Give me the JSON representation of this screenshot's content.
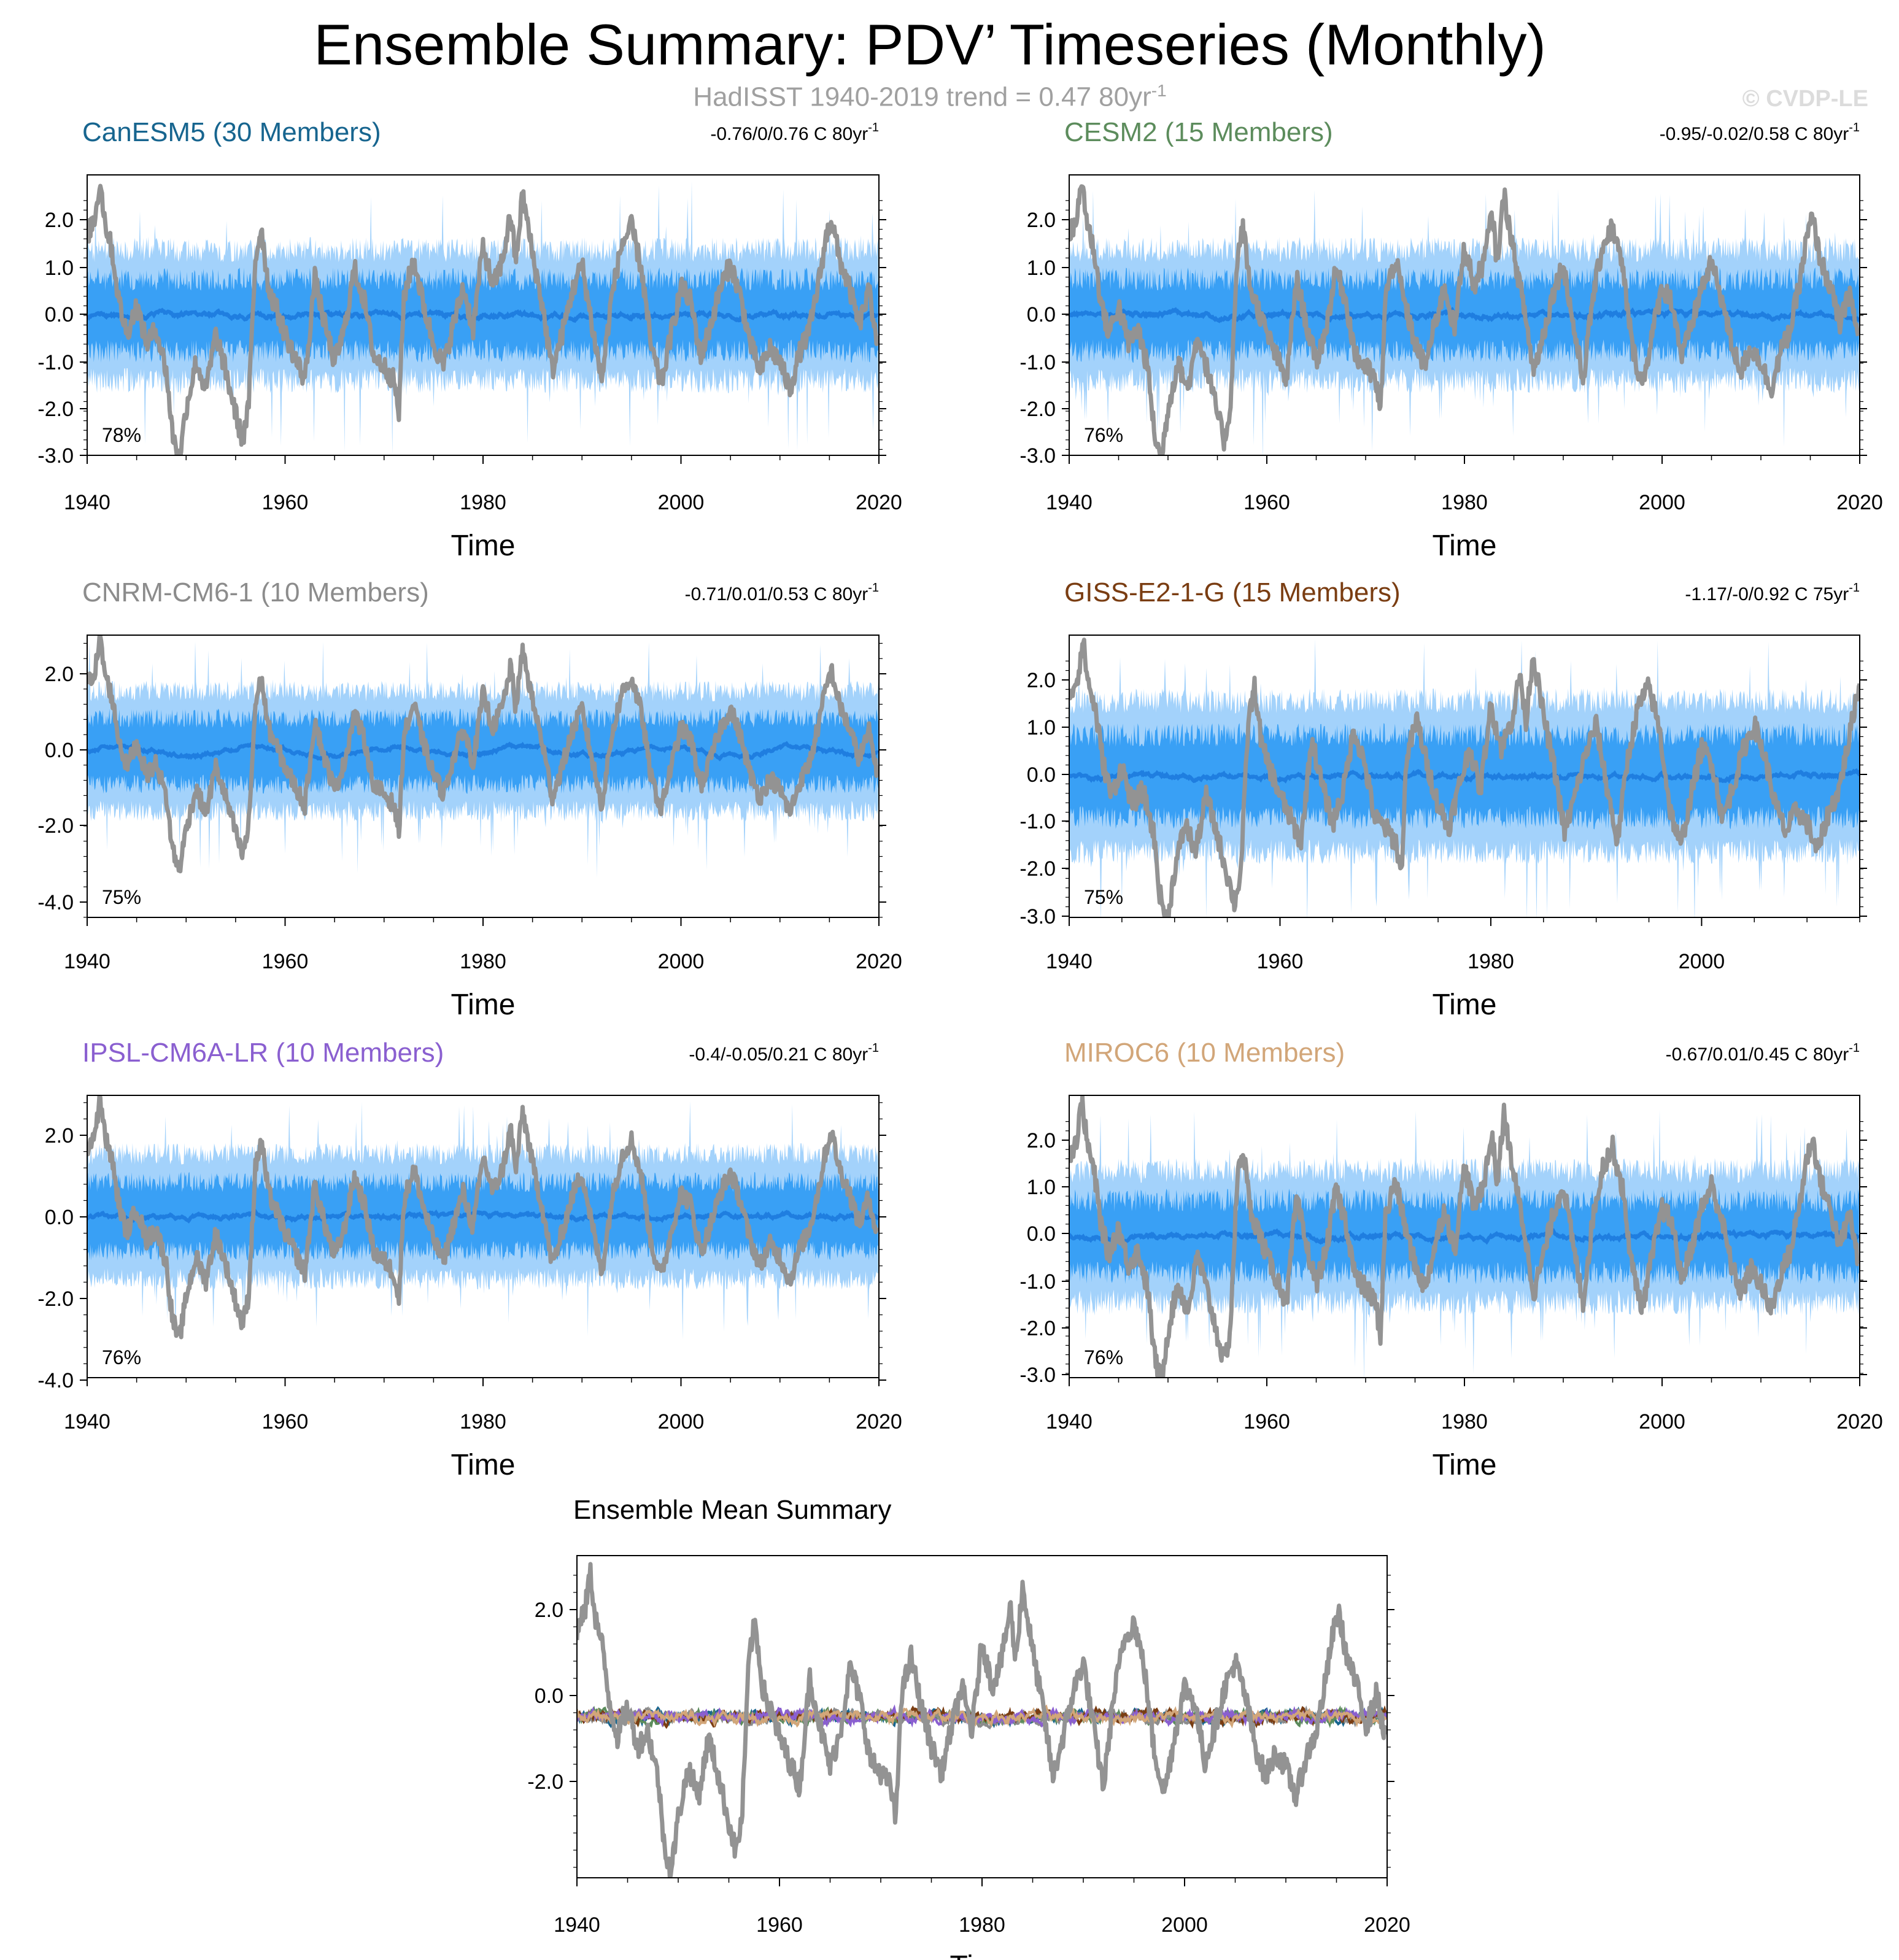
{
  "title": "Ensemble Summary: PDV’ Timeseries (Monthly)",
  "subtitle": "HadISST 1940-2019 trend = 0.47 80yr",
  "subtitle_sup": "-1",
  "copyright": "© CVDP-LE",
  "chart_data": [
    {
      "type": "area",
      "id": "canesm5",
      "title": "CanESM5 (30 Members)",
      "title_color": "#17658f",
      "trend": "-0.76/0/0.76 C 80yr",
      "trend_sup": "-1",
      "percent": "78%",
      "xlabel": "Time",
      "x_ticks": [
        "1940",
        "1960",
        "1980",
        "2000",
        "2020"
      ],
      "xlim": [
        1940,
        2020
      ],
      "y_ticks": [
        "2.0",
        "1.0",
        "0.0",
        "-1.0",
        "-2.0",
        "-3.0"
      ],
      "ylim": [
        -3.0,
        3.0
      ],
      "series": [
        {
          "name": "ensemble 10-90% range",
          "color": "#a3d2fb"
        },
        {
          "name": "ensemble 25-75% range",
          "color": "#39a0f5"
        },
        {
          "name": "ensemble mean",
          "color": "#1f7ee0"
        },
        {
          "name": "HadISST observed",
          "color": "#939393"
        }
      ]
    },
    {
      "type": "area",
      "id": "cesm2",
      "title": "CESM2 (15 Members)",
      "title_color": "#5c8c5c",
      "trend": "-0.95/-0.02/0.58 C 80yr",
      "trend_sup": "-1",
      "percent": "76%",
      "xlabel": "Time",
      "x_ticks": [
        "1940",
        "1960",
        "1980",
        "2000",
        "2020"
      ],
      "xlim": [
        1940,
        2020
      ],
      "y_ticks": [
        "2.0",
        "1.0",
        "0.0",
        "-1.0",
        "-2.0",
        "-3.0"
      ],
      "ylim": [
        -3.0,
        3.0
      ],
      "series": [
        {
          "name": "ensemble 10-90% range",
          "color": "#a3d2fb"
        },
        {
          "name": "ensemble 25-75% range",
          "color": "#39a0f5"
        },
        {
          "name": "ensemble mean",
          "color": "#1f7ee0"
        },
        {
          "name": "HadISST observed",
          "color": "#939393"
        }
      ]
    },
    {
      "type": "area",
      "id": "cnrm",
      "title": "CNRM-CM6-1 (10 Members)",
      "title_color": "#8c8c8c",
      "trend": "-0.71/0.01/0.53 C 80yr",
      "trend_sup": "-1",
      "percent": "75%",
      "xlabel": "Time",
      "x_ticks": [
        "1940",
        "1960",
        "1980",
        "2000",
        "2020"
      ],
      "xlim": [
        1940,
        2020
      ],
      "y_ticks": [
        "2.0",
        "0.0",
        "-2.0",
        "-4.0"
      ],
      "ylim": [
        -4.3,
        3.0
      ],
      "series": [
        {
          "name": "ensemble 10-90% range",
          "color": "#a3d2fb"
        },
        {
          "name": "ensemble 25-75% range",
          "color": "#39a0f5"
        },
        {
          "name": "ensemble mean",
          "color": "#1f7ee0"
        },
        {
          "name": "HadISST observed",
          "color": "#939393"
        }
      ]
    },
    {
      "type": "area",
      "id": "giss",
      "title": "GISS-E2-1-G (15 Members)",
      "title_color": "#7a3d12",
      "trend": "-1.17/-0/0.92 C 75yr",
      "trend_sup": "-1",
      "percent": "75%",
      "xlabel": "Time",
      "x_ticks": [
        "1940",
        "1960",
        "1980",
        "2000"
      ],
      "xlim": [
        1940,
        2015
      ],
      "y_ticks": [
        "2.0",
        "1.0",
        "0.0",
        "-1.0",
        "-2.0",
        "-3.0"
      ],
      "ylim": [
        -3.0,
        3.0
      ],
      "series": [
        {
          "name": "ensemble 10-90% range",
          "color": "#a3d2fb"
        },
        {
          "name": "ensemble 25-75% range",
          "color": "#39a0f5"
        },
        {
          "name": "ensemble mean",
          "color": "#1f7ee0"
        },
        {
          "name": "HadISST observed",
          "color": "#939393"
        }
      ]
    },
    {
      "type": "area",
      "id": "ipsl",
      "title": "IPSL-CM6A-LR (10 Members)",
      "title_color": "#8a5fd0",
      "trend": "-0.4/-0.05/0.21 C 80yr",
      "trend_sup": "-1",
      "percent": "76%",
      "xlabel": "Time",
      "x_ticks": [
        "1940",
        "1960",
        "1980",
        "2000",
        "2020"
      ],
      "xlim": [
        1940,
        2020
      ],
      "y_ticks": [
        "2.0",
        "0.0",
        "-2.0",
        "-4.0"
      ],
      "ylim": [
        -4.0,
        3.0
      ],
      "series": [
        {
          "name": "ensemble 10-90% range",
          "color": "#a3d2fb"
        },
        {
          "name": "ensemble 25-75% range",
          "color": "#39a0f5"
        },
        {
          "name": "ensemble mean",
          "color": "#1f7ee0"
        },
        {
          "name": "HadISST observed",
          "color": "#939393"
        }
      ]
    },
    {
      "type": "area",
      "id": "miroc6",
      "title": "MIROC6 (10 Members)",
      "title_color": "#d2a679",
      "trend": "-0.67/0.01/0.45 C 80yr",
      "trend_sup": "-1",
      "percent": "76%",
      "xlabel": "Time",
      "x_ticks": [
        "1940",
        "1960",
        "1980",
        "2000",
        "2020"
      ],
      "xlim": [
        1940,
        2020
      ],
      "y_ticks": [
        "2.0",
        "1.0",
        "0.0",
        "-1.0",
        "-2.0",
        "-3.0"
      ],
      "ylim": [
        -3.0,
        3.0
      ],
      "series": [
        {
          "name": "ensemble 10-90% range",
          "color": "#a3d2fb"
        },
        {
          "name": "ensemble 25-75% range",
          "color": "#39a0f5"
        },
        {
          "name": "ensemble mean",
          "color": "#1f7ee0"
        },
        {
          "name": "HadISST observed",
          "color": "#939393"
        }
      ]
    },
    {
      "type": "line",
      "id": "ensmean",
      "title": "Ensemble Mean Summary",
      "title_color": "#000000",
      "trend": "",
      "trend_sup": "",
      "percent": "",
      "xlabel": "Time",
      "x_ticks": [
        "1940",
        "1960",
        "1980",
        "2000",
        "2020"
      ],
      "xlim": [
        1940,
        2020
      ],
      "y_ticks": [
        "2.0",
        "0.0",
        "-2.0"
      ],
      "ylim": [
        -3.2,
        3.2
      ],
      "series": [
        {
          "name": "HadISST observed",
          "color": "#939393"
        },
        {
          "name": "CanESM5",
          "color": "#17658f"
        },
        {
          "name": "CESM2",
          "color": "#5c8c5c"
        },
        {
          "name": "CNRM-CM6-1",
          "color": "#8c8c8c"
        },
        {
          "name": "GISS-E2-1-G",
          "color": "#7a3d12"
        },
        {
          "name": "IPSL-CM6A-LR",
          "color": "#8a5fd0"
        },
        {
          "name": "MIROC6",
          "color": "#d2a679"
        }
      ]
    }
  ],
  "observed_anchor": {
    "x": [
      1940,
      1940.8,
      1941.3,
      1941.8,
      1942.5,
      1943.2,
      1944,
      1945,
      1946,
      1947,
      1948,
      1948.6,
      1949.3,
      1950,
      1951,
      1952,
      1953,
      1954,
      1955,
      1955.7,
      1956.3,
      1957,
      1957.6,
      1958.3,
      1959,
      1960,
      1961,
      1962,
      1963,
      1964,
      1965,
      1966,
      1967,
      1968,
      1969,
      1970,
      1971,
      1971.5,
      1972,
      1973,
      1974,
      1975,
      1976,
      1977,
      1978,
      1979,
      1980,
      1981,
      1982,
      1982.8,
      1983.3,
      1984,
      1985,
      1986,
      1987,
      1988,
      1989,
      1990,
      1991,
      1992,
      1993,
      1994,
      1995,
      1996,
      1997,
      1998,
      1999,
      2000,
      2001,
      2002,
      2003,
      2004,
      2005,
      2006,
      2007,
      2008,
      2009,
      2010,
      2011,
      2012,
      2013,
      2014,
      2014.6,
      2015.2,
      2016,
      2017,
      2018,
      2019,
      2019.9
    ],
    "y": [
      1.7,
      2.1,
      2.9,
      2.0,
      1.4,
      0.3,
      -0.4,
      0.2,
      -0.6,
      -0.3,
      -1.2,
      -2.5,
      -3.1,
      -2.0,
      -1.0,
      -1.6,
      -0.4,
      -1.2,
      -2.1,
      -2.7,
      -2.0,
      1.2,
      1.9,
      0.6,
      0.2,
      -0.4,
      -0.9,
      -1.4,
      0.8,
      -0.2,
      -1.0,
      -0.3,
      1.0,
      0.3,
      -0.9,
      -1.1,
      -1.4,
      -2.1,
      0.4,
      1.2,
      0.2,
      -0.6,
      -1.1,
      -0.2,
      0.6,
      -0.3,
      1.5,
      0.6,
      1.2,
      2.2,
      1.1,
      2.6,
      1.3,
      0.2,
      -1.2,
      -0.4,
      0.5,
      1.1,
      -0.2,
      -1.4,
      0.4,
      1.5,
      1.9,
      1.0,
      -0.7,
      -1.5,
      -0.4,
      0.6,
      0.3,
      -0.9,
      -0.2,
      0.6,
      1.1,
      0.4,
      -0.6,
      -1.2,
      -0.7,
      -1.0,
      -1.6,
      -0.8,
      -0.3,
      0.8,
      1.6,
      2.1,
      1.2,
      0.6,
      -0.2,
      0.5,
      -0.6
    ]
  }
}
